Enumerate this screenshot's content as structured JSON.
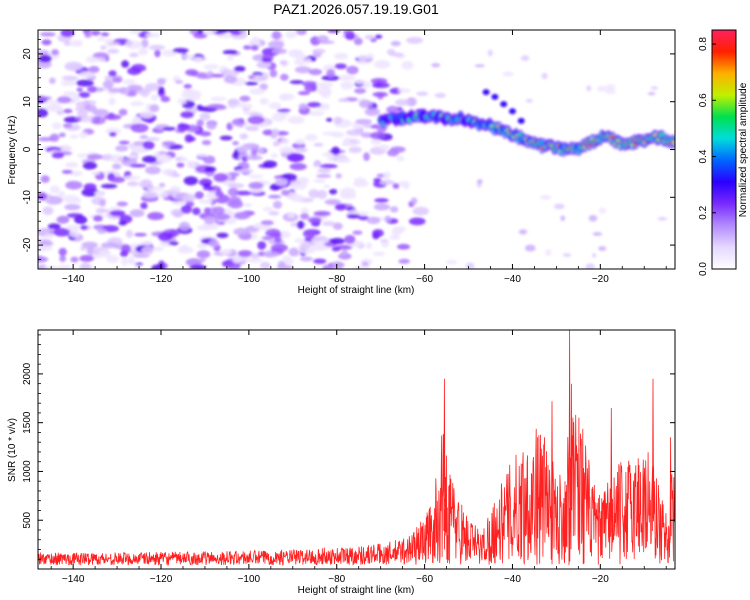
{
  "title": "PAZ1.2026.057.19.19.G01",
  "chart_data": [
    {
      "type": "heatmap",
      "title": "PAZ1.2026.057.19.19.G01",
      "xlabel": "Height of straight line (km)",
      "ylabel": "Frequency (Hz)",
      "xlim": [
        -148,
        -3
      ],
      "ylim": [
        -25,
        25
      ],
      "xticks": [
        -140,
        -120,
        -100,
        -80,
        -60,
        -40,
        -20
      ],
      "yticks": [
        -20,
        -10,
        0,
        10,
        20
      ],
      "ridge_x": [
        -70,
        -66,
        -62,
        -58,
        -55,
        -52,
        -49,
        -46,
        -44,
        -42,
        -40,
        -38,
        -36,
        -34,
        -32,
        -30,
        -28,
        -26,
        -24,
        -22,
        -20,
        -18,
        -16,
        -14,
        -12,
        -10,
        -8,
        -6,
        -3
      ],
      "ridge_freq": [
        6,
        6.5,
        7,
        7,
        6.5,
        6.5,
        5.5,
        5.5,
        4.5,
        4,
        3,
        2.5,
        1.5,
        1,
        0.5,
        0.5,
        0,
        0,
        0.5,
        1.5,
        2.5,
        2.5,
        1.5,
        1,
        1.5,
        2,
        2.5,
        2.5,
        1.5
      ],
      "noise_x_range": [
        -148,
        -60
      ],
      "noise_freq_range": [
        -25,
        25
      ],
      "colorbar": {
        "label": "Normalized spectral amplitude",
        "range": [
          0,
          0.85
        ],
        "ticks": [
          "0.0",
          "0.2",
          "0.4",
          "0.6",
          "0.8"
        ],
        "colors": [
          "#ffffff",
          "#e6d8ff",
          "#b28cff",
          "#7a2bff",
          "#2a00ff",
          "#0066ff",
          "#00dcdc",
          "#00e050",
          "#c0f000",
          "#ffb000",
          "#ff2000",
          "#ff2060"
        ]
      }
    },
    {
      "type": "line",
      "xlabel": "Height of straight line (km)",
      "ylabel": "SNR (10 * v/v)",
      "xlim": [
        -148,
        -3
      ],
      "ylim": [
        0,
        2450
      ],
      "xticks": [
        -140,
        -120,
        -100,
        -80,
        -60,
        -40,
        -20
      ],
      "yticks": [
        500,
        1000,
        1500,
        2000
      ],
      "color": "#ff2020",
      "envelope_x": [
        -148,
        -130,
        -110,
        -90,
        -75,
        -68,
        -64,
        -61,
        -58,
        -56,
        -54,
        -52,
        -50,
        -47,
        -45,
        -42,
        -40,
        -37,
        -34,
        -32,
        -30,
        -28,
        -27,
        -26,
        -24,
        -22,
        -20,
        -17,
        -14,
        -12,
        -10,
        -8,
        -6,
        -5,
        -4,
        -3
      ],
      "envelope_y": [
        130,
        130,
        140,
        160,
        200,
        240,
        300,
        450,
        700,
        1400,
        1000,
        700,
        500,
        350,
        600,
        900,
        1100,
        1300,
        1450,
        1300,
        900,
        1100,
        1700,
        2100,
        1500,
        900,
        700,
        1000,
        1100,
        1200,
        1300,
        1150,
        700,
        600,
        900,
        1100
      ],
      "peaks": [
        {
          "x": -55.5,
          "y": 1950
        },
        {
          "x": -27.0,
          "y": 2450
        },
        {
          "x": -31.0,
          "y": 1720
        },
        {
          "x": -17.5,
          "y": 1650
        },
        {
          "x": -8.0,
          "y": 1950
        },
        {
          "x": -4.0,
          "y": 1350
        }
      ]
    }
  ]
}
